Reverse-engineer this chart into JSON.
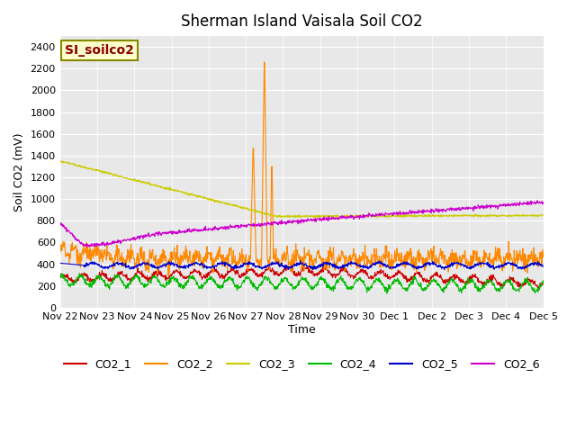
{
  "title": "Sherman Island Vaisala Soil CO2",
  "ylabel": "Soil CO2 (mV)",
  "xlabel": "Time",
  "watermark": "SI_soilco2",
  "ylim": [
    0,
    2500
  ],
  "yticks": [
    0,
    200,
    400,
    600,
    800,
    1000,
    1200,
    1400,
    1600,
    1800,
    2000,
    2200,
    2400
  ],
  "colors": {
    "CO2_1": "#cc0000",
    "CO2_2": "#ff8800",
    "CO2_3": "#cccc00",
    "CO2_4": "#00bb00",
    "CO2_5": "#0000cc",
    "CO2_6": "#cc00cc"
  },
  "bg_color": "#e8e8e8",
  "legend_entries": [
    "CO2_1",
    "CO2_2",
    "CO2_3",
    "CO2_4",
    "CO2_5",
    "CO2_6"
  ]
}
